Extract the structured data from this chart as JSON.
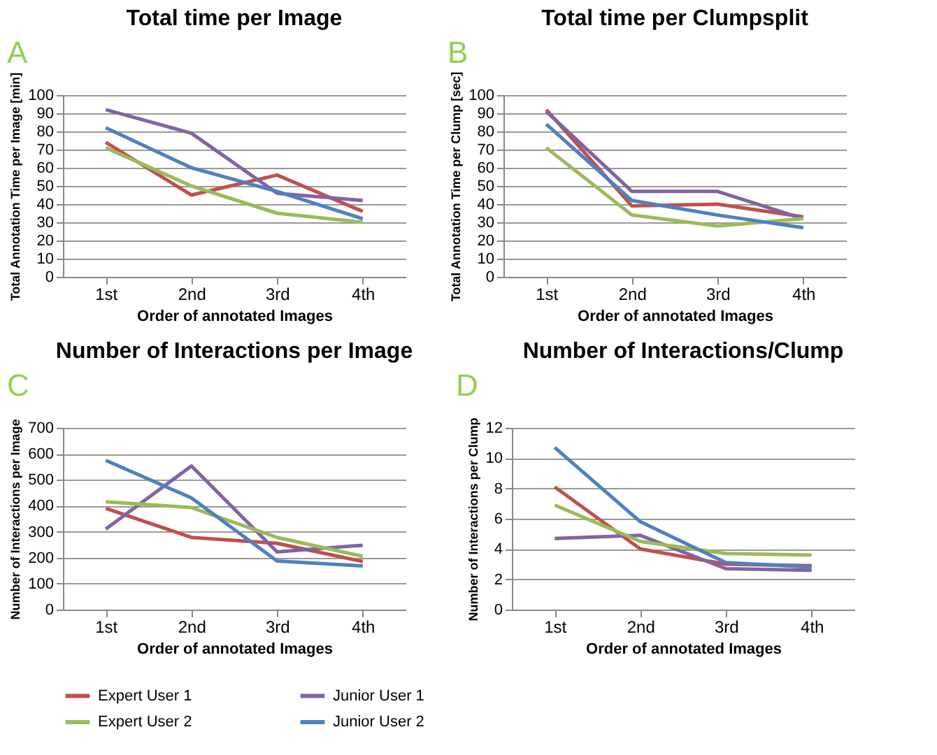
{
  "chart_data": [
    {
      "type": "line",
      "title": "Total time per Image",
      "annotations": [
        "A"
      ],
      "xlabel": "Order of annotated Images",
      "ylabel": "Total Annotation Time per Image [min]",
      "categories": [
        "1st",
        "2nd",
        "3rd",
        "4th"
      ],
      "ylim": [
        0,
        100
      ],
      "yticks": [
        0,
        10,
        20,
        30,
        40,
        50,
        60,
        70,
        80,
        90,
        100
      ],
      "grid": "y",
      "legend": "bottom",
      "marker": "none",
      "series": [
        {
          "name": "Expert User 1",
          "color": "#c0504d",
          "values": [
            74,
            45,
            56,
            36
          ]
        },
        {
          "name": "Junior User 1",
          "color": "#8064a2",
          "values": [
            92,
            79,
            46,
            42
          ]
        },
        {
          "name": "Expert User 2",
          "color": "#9bbb59",
          "values": [
            71,
            50,
            35,
            30
          ]
        },
        {
          "name": "Junior User 2",
          "color": "#4f81bd",
          "values": [
            82,
            60,
            47,
            32
          ]
        }
      ]
    },
    {
      "type": "line",
      "title": "Total time per Clumpsplit",
      "annotations": [
        "B"
      ],
      "xlabel": "Order of annotated Images",
      "ylabel": "Total Annotation Time per Clump [sec]",
      "categories": [
        "1st",
        "2nd",
        "3rd",
        "4th"
      ],
      "ylim": [
        0,
        100
      ],
      "yticks": [
        0,
        10,
        20,
        30,
        40,
        50,
        60,
        70,
        80,
        90,
        100
      ],
      "grid": "y",
      "legend": "bottom",
      "marker": "none",
      "series": [
        {
          "name": "Expert User 1",
          "color": "#c0504d",
          "values": [
            92,
            39,
            40,
            33
          ]
        },
        {
          "name": "Junior User 1",
          "color": "#8064a2",
          "values": [
            91,
            47,
            47,
            32
          ]
        },
        {
          "name": "Expert User 2",
          "color": "#9bbb59",
          "values": [
            71,
            34,
            28,
            32
          ]
        },
        {
          "name": "Junior User 2",
          "color": "#4f81bd",
          "values": [
            84,
            42,
            34,
            27
          ]
        }
      ]
    },
    {
      "type": "line",
      "title": "Number of Interactions per Image",
      "annotations": [
        "C"
      ],
      "xlabel": "Order of annotated Images",
      "ylabel": "Number of Interactions per Image",
      "categories": [
        "1st",
        "2nd",
        "3rd",
        "4th"
      ],
      "ylim": [
        0,
        700
      ],
      "yticks": [
        0,
        100,
        200,
        300,
        400,
        500,
        600,
        700
      ],
      "grid": "y",
      "legend": "bottom",
      "marker": "none",
      "series": [
        {
          "name": "Expert User 1",
          "color": "#c0504d",
          "values": [
            390,
            278,
            255,
            185
          ]
        },
        {
          "name": "Junior User 1",
          "color": "#8064a2",
          "values": [
            310,
            553,
            222,
            248
          ]
        },
        {
          "name": "Expert User 2",
          "color": "#9bbb59",
          "values": [
            415,
            393,
            278,
            205
          ]
        },
        {
          "name": "Junior User 2",
          "color": "#4f81bd",
          "values": [
            575,
            430,
            187,
            168
          ]
        }
      ]
    },
    {
      "type": "line",
      "title": "Number of Interactions/Clump",
      "annotations": [
        "D"
      ],
      "xlabel": "Order of annotated Images",
      "ylabel": "Number of Interactions per Clump",
      "categories": [
        "1st",
        "2nd",
        "3rd",
        "4th"
      ],
      "ylim": [
        0,
        12
      ],
      "yticks": [
        0,
        2,
        4,
        6,
        8,
        10,
        12
      ],
      "grid": "y",
      "legend": "bottom",
      "marker": "none",
      "series": [
        {
          "name": "Expert User 1",
          "color": "#c0504d",
          "values": [
            8.1,
            4.0,
            3.0,
            2.9
          ]
        },
        {
          "name": "Junior User 1",
          "color": "#8064a2",
          "values": [
            4.7,
            4.9,
            2.7,
            2.6
          ]
        },
        {
          "name": "Expert User 2",
          "color": "#9bbb59",
          "values": [
            6.9,
            4.5,
            3.7,
            3.6
          ]
        },
        {
          "name": "Junior User 2",
          "color": "#4f81bd",
          "values": [
            10.7,
            5.8,
            3.1,
            2.8
          ]
        }
      ]
    }
  ]
}
